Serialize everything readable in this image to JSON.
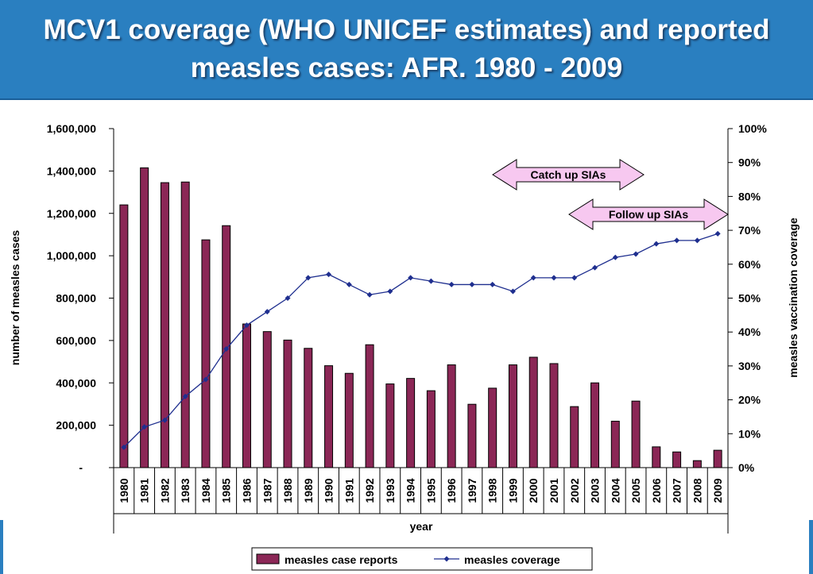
{
  "title_lines": [
    "MCV1 coverage (WHO UNICEF estimates) and reported",
    "measles cases: AFR. 1980 - 2009"
  ],
  "colors": {
    "title_bg": "#2a7fc0",
    "bar": "#8b2756",
    "line": "#1f2f8f",
    "arrow_fill": "#f7c8f0"
  },
  "chart_data": {
    "type": "bar",
    "title": "MCV1 coverage (WHO UNICEF estimates) and reported measles cases: AFR. 1980 - 2009",
    "xlabel": "year",
    "ylabel": "number of measles cases",
    "y2label": "measles vaccination coverage",
    "ylim": [
      0,
      1600000
    ],
    "y2lim": [
      0,
      100
    ],
    "y_ticks": [
      "-",
      "200,000",
      "400,000",
      "600,000",
      "800,000",
      "1,000,000",
      "1,200,000",
      "1,400,000",
      "1,600,000"
    ],
    "y2_ticks": [
      "0%",
      "10%",
      "20%",
      "30%",
      "40%",
      "50%",
      "60%",
      "70%",
      "80%",
      "90%",
      "100%"
    ],
    "categories": [
      "1980",
      "1981",
      "1982",
      "1983",
      "1984",
      "1985",
      "1986",
      "1987",
      "1988",
      "1989",
      "1990",
      "1991",
      "1992",
      "1993",
      "1994",
      "1995",
      "1996",
      "1997",
      "1998",
      "1999",
      "2000",
      "2001",
      "2002",
      "2003",
      "2004",
      "2005",
      "2006",
      "2007",
      "2008",
      "2009"
    ],
    "series": [
      {
        "name": "measles case reports",
        "type": "bar",
        "axis": "left",
        "values": [
          1240000,
          1415000,
          1345000,
          1348000,
          1075000,
          1142000,
          678000,
          642000,
          602000,
          563000,
          481000,
          445000,
          580000,
          395000,
          421000,
          363000,
          485000,
          299000,
          375000,
          485000,
          521000,
          491000,
          288000,
          400000,
          219000,
          314000,
          98000,
          74000,
          33000,
          82000
        ]
      },
      {
        "name": "measles coverage",
        "type": "line",
        "axis": "right",
        "values": [
          6,
          12,
          14,
          21,
          26,
          35,
          42,
          46,
          50,
          56,
          57,
          54,
          51,
          52,
          56,
          55,
          54,
          54,
          54,
          52,
          56,
          56,
          56,
          59,
          62,
          63,
          66,
          67,
          67,
          69
        ]
      }
    ],
    "annotations": [
      {
        "label": "Catch up SIAs",
        "from": "1998",
        "to": "2004"
      },
      {
        "label": "Follow up SIAs",
        "from": "2001",
        "to": "2009"
      }
    ],
    "legend": "bottom",
    "grid": false
  }
}
